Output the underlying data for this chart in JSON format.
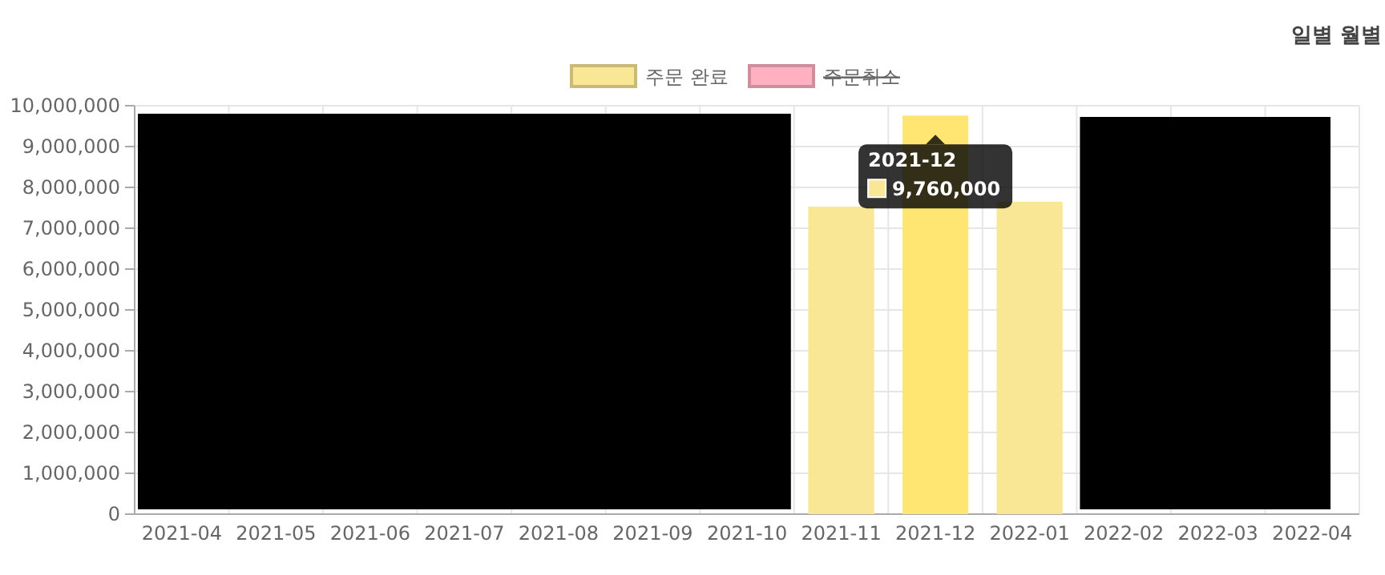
{
  "chart_data": {
    "type": "bar",
    "categories": [
      "2021-04",
      "2021-05",
      "2021-06",
      "2021-07",
      "2021-08",
      "2021-09",
      "2021-10",
      "2021-11",
      "2021-12",
      "2022-01",
      "2022-02",
      "2022-03",
      "2022-04"
    ],
    "series": [
      {
        "name": "주문 완료",
        "color": "#f9e796",
        "colors": [
          null,
          null,
          null,
          null,
          null,
          null,
          null,
          "#f9e796",
          "#ffe673",
          "#f9e796",
          null,
          null,
          null
        ],
        "values": [
          null,
          null,
          null,
          null,
          null,
          null,
          null,
          7530000,
          9760000,
          7650000,
          null,
          null,
          null
        ]
      },
      {
        "name": "주문취소",
        "color": "#ffb1c1",
        "values": [
          null,
          null,
          null,
          null,
          null,
          null,
          null,
          null,
          null,
          null,
          null,
          null,
          null
        ]
      }
    ],
    "ylim": [
      0,
      10000000
    ],
    "yticks": [
      {
        "value": 0,
        "label": "0"
      },
      {
        "value": 1000000,
        "label": "1,000,000"
      },
      {
        "value": 2000000,
        "label": "2,000,000"
      },
      {
        "value": 3000000,
        "label": "3,000,000"
      },
      {
        "value": 4000000,
        "label": "4,000,000"
      },
      {
        "value": 5000000,
        "label": "5,000,000"
      },
      {
        "value": 6000000,
        "label": "6,000,000"
      },
      {
        "value": 7000000,
        "label": "7,000,000"
      },
      {
        "value": 8000000,
        "label": "8,000,000"
      },
      {
        "value": 9000000,
        "label": "9,000,000"
      },
      {
        "value": 10000000,
        "label": "10,000,000"
      }
    ],
    "grid": true,
    "legend": "top",
    "annotations": [
      "일별 월별",
      {
        "text": "2021-12",
        "x": "2021-12",
        "y": 9760000
      },
      "9,760,000"
    ]
  }
}
